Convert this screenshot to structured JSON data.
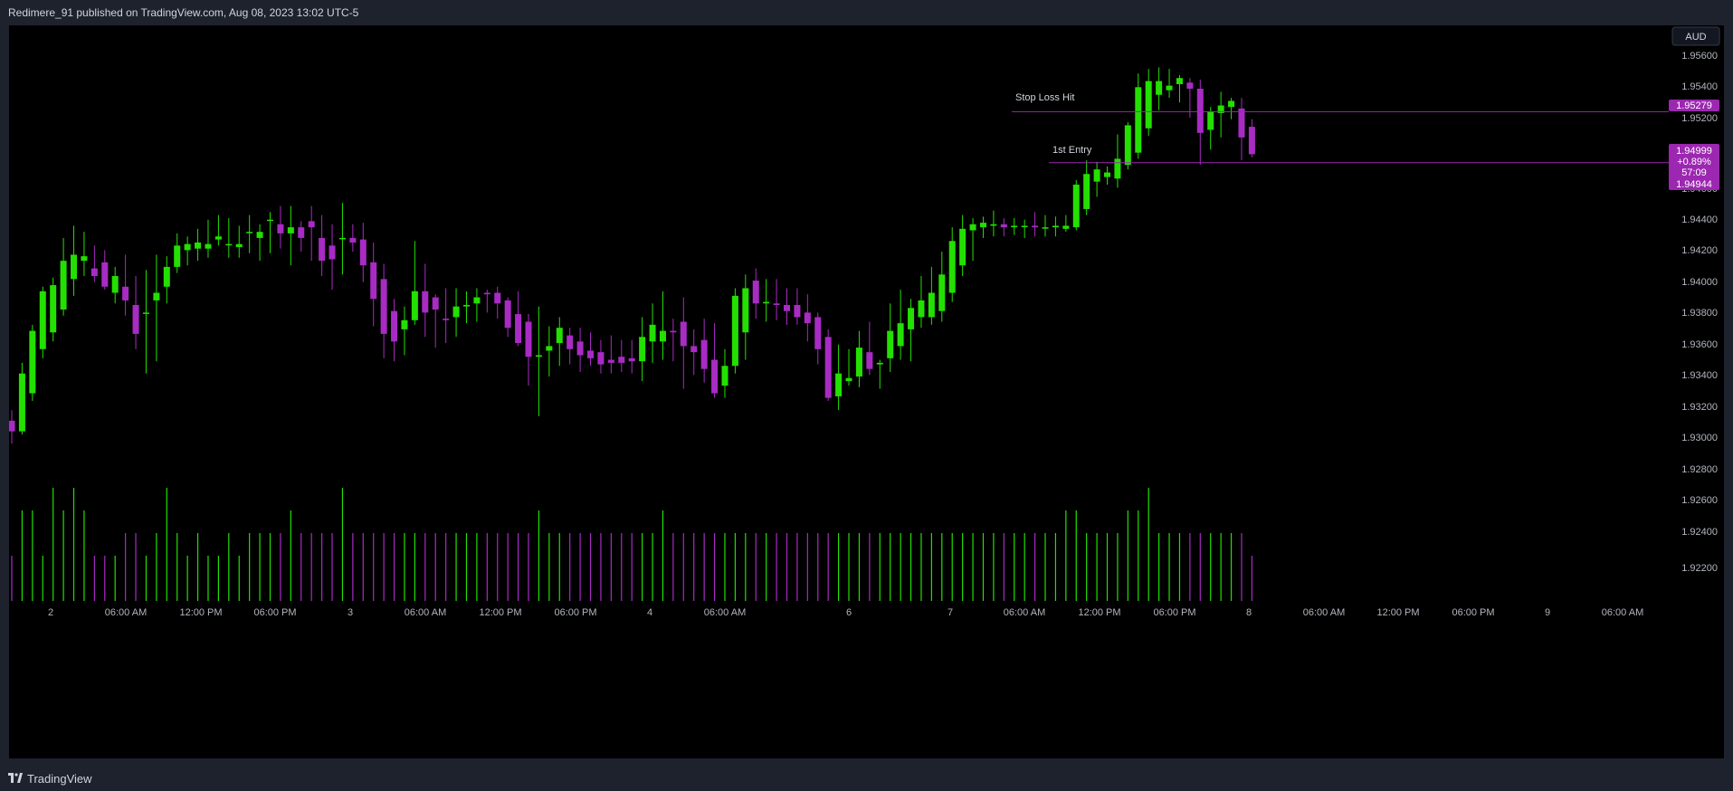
{
  "header": {
    "title": "Redimere_91 published on TradingView.com, Aug 08, 2023 13:02 UTC-5"
  },
  "footer": {
    "brand": "TradingView"
  },
  "currency_button": "AUD",
  "colors": {
    "up": "#23e000",
    "down": "#a82bc4",
    "background": "#000000",
    "label": "#9c27b0"
  },
  "annotations": [
    {
      "name": "stop-loss-line",
      "text": "Stop Loss Hit",
      "price": 1.95279
    },
    {
      "name": "first-entry-line",
      "text": "1st Entry",
      "price": 1.94944
    }
  ],
  "price_labels": {
    "stop_loss": "1.95279",
    "current_price": "1.94999",
    "change_pct": "+0.89%",
    "countdown": "57:09",
    "entry": "1.94944"
  },
  "chart_data": {
    "type": "candlestick",
    "symbol_currency": "AUD",
    "y_ticks": [
      "1.95600",
      "1.95400",
      "1.95200",
      "1.94600",
      "1.94400",
      "1.94200",
      "1.94000",
      "1.93800",
      "1.93600",
      "1.93400",
      "1.93200",
      "1.93000",
      "1.92800",
      "1.92600",
      "1.92400",
      "1.92200"
    ],
    "ylim": [
      1.9212,
      1.9565
    ],
    "x_ticks": [
      "2",
      "06:00 AM",
      "12:00 PM",
      "06:00 PM",
      "3",
      "06:00 AM",
      "12:00 PM",
      "06:00 PM",
      "4",
      "06:00 AM",
      "6",
      "7",
      "06:00 AM",
      "12:00 PM",
      "06:00 PM",
      "8",
      "06:00 AM",
      "12:00 PM",
      "06:00 PM",
      "9",
      "06:00 AM"
    ],
    "candles": [
      [
        1.9325,
        1.9332,
        1.931,
        1.9318,
        2
      ],
      [
        1.9318,
        1.9363,
        1.9316,
        1.9356,
        4
      ],
      [
        1.9343,
        1.9388,
        1.9338,
        1.9384,
        4
      ],
      [
        1.9372,
        1.9413,
        1.9366,
        1.941,
        2
      ],
      [
        1.9383,
        1.9419,
        1.9377,
        1.9414,
        5
      ],
      [
        1.9398,
        1.9445,
        1.9394,
        1.943,
        4
      ],
      [
        1.9418,
        1.9453,
        1.9407,
        1.9434,
        5
      ],
      [
        1.943,
        1.9449,
        1.942,
        1.9433,
        4
      ],
      [
        1.9425,
        1.944,
        1.9416,
        1.942,
        2
      ],
      [
        1.9429,
        1.9437,
        1.9411,
        1.9413,
        2
      ],
      [
        1.9409,
        1.9426,
        1.9402,
        1.942,
        2
      ],
      [
        1.9413,
        1.9434,
        1.9394,
        1.9404,
        3
      ],
      [
        1.9401,
        1.942,
        1.9372,
        1.9382,
        3
      ],
      [
        1.9396,
        1.9424,
        1.9356,
        1.9396,
        2
      ],
      [
        1.9404,
        1.9434,
        1.9364,
        1.9409,
        3
      ],
      [
        1.9413,
        1.9433,
        1.9402,
        1.9426,
        5
      ],
      [
        1.9426,
        1.9448,
        1.9422,
        1.944,
        3
      ],
      [
        1.9437,
        1.9446,
        1.9427,
        1.9441,
        2
      ],
      [
        1.9438,
        1.9451,
        1.943,
        1.9442,
        3
      ],
      [
        1.9438,
        1.9457,
        1.9432,
        1.9441,
        2
      ],
      [
        1.9444,
        1.946,
        1.944,
        1.9446,
        2
      ],
      [
        1.9441,
        1.9458,
        1.9432,
        1.9441,
        3
      ],
      [
        1.9439,
        1.9453,
        1.9432,
        1.9441,
        2
      ],
      [
        1.9449,
        1.946,
        1.9435,
        1.9449,
        3
      ],
      [
        1.9445,
        1.9454,
        1.943,
        1.9449,
        3
      ],
      [
        1.9457,
        1.9462,
        1.9435,
        1.9457,
        3
      ],
      [
        1.9454,
        1.9466,
        1.9438,
        1.9448,
        3
      ],
      [
        1.9448,
        1.9466,
        1.9427,
        1.9452,
        4
      ],
      [
        1.9452,
        1.9456,
        1.9436,
        1.9445,
        3
      ],
      [
        1.9456,
        1.9466,
        1.943,
        1.9452,
        3
      ],
      [
        1.9445,
        1.946,
        1.942,
        1.943,
        3
      ],
      [
        1.944,
        1.9454,
        1.9411,
        1.9431,
        3
      ],
      [
        1.9445,
        1.9468,
        1.9421,
        1.9445,
        5
      ],
      [
        1.9445,
        1.9454,
        1.9436,
        1.9442,
        3
      ],
      [
        1.9444,
        1.9455,
        1.9416,
        1.9427,
        3
      ],
      [
        1.9429,
        1.9442,
        1.9387,
        1.9405,
        3
      ],
      [
        1.9418,
        1.9428,
        1.9366,
        1.9382,
        3
      ],
      [
        1.9397,
        1.9405,
        1.9364,
        1.9377,
        3
      ],
      [
        1.9385,
        1.94,
        1.9368,
        1.9391,
        3
      ],
      [
        1.9391,
        1.9443,
        1.9388,
        1.941,
        3
      ],
      [
        1.941,
        1.9428,
        1.938,
        1.9396,
        3
      ],
      [
        1.9406,
        1.9408,
        1.9373,
        1.9398,
        3
      ],
      [
        1.9392,
        1.9412,
        1.9376,
        1.9391,
        3
      ],
      [
        1.9393,
        1.9412,
        1.938,
        1.94,
        3
      ],
      [
        1.94,
        1.941,
        1.9389,
        1.9401,
        3
      ],
      [
        1.9402,
        1.9412,
        1.939,
        1.9406,
        3
      ],
      [
        1.9409,
        1.9411,
        1.9396,
        1.9408,
        3
      ],
      [
        1.9409,
        1.9413,
        1.9392,
        1.9402,
        3
      ],
      [
        1.9404,
        1.9406,
        1.938,
        1.9386,
        3
      ],
      [
        1.9395,
        1.941,
        1.9374,
        1.9376,
        3
      ],
      [
        1.939,
        1.9395,
        1.9348,
        1.9367,
        3
      ],
      [
        1.9367,
        1.94,
        1.9328,
        1.9368,
        4
      ],
      [
        1.9371,
        1.9387,
        1.9354,
        1.9374,
        3
      ],
      [
        1.9376,
        1.9393,
        1.9361,
        1.9386,
        3
      ],
      [
        1.9381,
        1.9386,
        1.9362,
        1.9372,
        3
      ],
      [
        1.9377,
        1.9386,
        1.9357,
        1.9368,
        3
      ],
      [
        1.9371,
        1.9383,
        1.9361,
        1.9366,
        3
      ],
      [
        1.937,
        1.9378,
        1.9356,
        1.9362,
        3
      ],
      [
        1.9365,
        1.9381,
        1.9356,
        1.9363,
        3
      ],
      [
        1.9367,
        1.9378,
        1.9357,
        1.9363,
        3
      ],
      [
        1.9366,
        1.9378,
        1.9356,
        1.9364,
        3
      ],
      [
        1.9364,
        1.9393,
        1.9351,
        1.938,
        3
      ],
      [
        1.9377,
        1.9402,
        1.9363,
        1.9388,
        3
      ],
      [
        1.9377,
        1.941,
        1.9365,
        1.9384,
        4
      ],
      [
        1.9384,
        1.9392,
        1.9364,
        1.9383,
        3
      ],
      [
        1.939,
        1.9406,
        1.9346,
        1.9374,
        3
      ],
      [
        1.9374,
        1.9385,
        1.9355,
        1.937,
        3
      ],
      [
        1.9378,
        1.9392,
        1.935,
        1.9359,
        3
      ],
      [
        1.9365,
        1.9389,
        1.934,
        1.9343,
        3
      ],
      [
        1.9348,
        1.9372,
        1.934,
        1.9361,
        3
      ],
      [
        1.9361,
        1.9412,
        1.9356,
        1.9407,
        3
      ],
      [
        1.9383,
        1.9421,
        1.9365,
        1.9412,
        3
      ],
      [
        1.9417,
        1.9425,
        1.9392,
        1.9402,
        3
      ],
      [
        1.9402,
        1.9418,
        1.939,
        1.9403,
        3
      ],
      [
        1.9402,
        1.9418,
        1.9391,
        1.9401,
        3
      ],
      [
        1.9401,
        1.9412,
        1.9388,
        1.9397,
        3
      ],
      [
        1.9401,
        1.9412,
        1.9388,
        1.9393,
        3
      ],
      [
        1.9396,
        1.9408,
        1.9377,
        1.9389,
        3
      ],
      [
        1.9393,
        1.9396,
        1.9362,
        1.9372,
        3
      ],
      [
        1.938,
        1.9385,
        1.9338,
        1.934,
        3
      ],
      [
        1.9341,
        1.9375,
        1.9332,
        1.9356,
        3
      ],
      [
        1.9351,
        1.9372,
        1.9348,
        1.9353,
        3
      ],
      [
        1.9354,
        1.9384,
        1.9347,
        1.9373,
        3
      ],
      [
        1.937,
        1.939,
        1.9355,
        1.9359,
        3
      ],
      [
        1.9362,
        1.9365,
        1.9346,
        1.9363,
        3
      ],
      [
        1.9366,
        1.9402,
        1.9357,
        1.9384,
        3
      ],
      [
        1.9374,
        1.9411,
        1.9365,
        1.9389,
        3
      ],
      [
        1.9385,
        1.9405,
        1.9364,
        1.9399,
        3
      ],
      [
        1.9393,
        1.942,
        1.9386,
        1.9404,
        3
      ],
      [
        1.9393,
        1.9426,
        1.9388,
        1.9409,
        3
      ],
      [
        1.9397,
        1.9436,
        1.939,
        1.9421,
        3
      ],
      [
        1.9409,
        1.9452,
        1.9403,
        1.9443,
        3
      ],
      [
        1.9427,
        1.946,
        1.942,
        1.9451,
        3
      ],
      [
        1.945,
        1.9458,
        1.943,
        1.9454,
        3
      ],
      [
        1.9452,
        1.9459,
        1.9445,
        1.9455,
        3
      ],
      [
        1.9453,
        1.9463,
        1.9446,
        1.9454,
        3
      ],
      [
        1.9454,
        1.9458,
        1.9446,
        1.9452,
        3
      ],
      [
        1.9452,
        1.9458,
        1.9447,
        1.9453,
        3
      ],
      [
        1.9453,
        1.9457,
        1.9445,
        1.9453,
        3
      ],
      [
        1.9453,
        1.9462,
        1.9446,
        1.9452,
        3
      ],
      [
        1.9452,
        1.946,
        1.9446,
        1.9452,
        3
      ],
      [
        1.9452,
        1.9459,
        1.9446,
        1.9453,
        3
      ],
      [
        1.9451,
        1.946,
        1.9449,
        1.9453,
        4
      ],
      [
        1.9452,
        1.9483,
        1.945,
        1.948,
        4
      ],
      [
        1.9464,
        1.9496,
        1.946,
        1.9487,
        3
      ],
      [
        1.9482,
        1.9495,
        1.9472,
        1.949,
        3
      ],
      [
        1.9485,
        1.9492,
        1.948,
        1.9488,
        3
      ],
      [
        1.9484,
        1.9513,
        1.9478,
        1.9497,
        3
      ],
      [
        1.9493,
        1.9521,
        1.949,
        1.9519,
        4
      ],
      [
        1.9501,
        1.9553,
        1.9497,
        1.9544,
        4
      ],
      [
        1.9517,
        1.9556,
        1.9512,
        1.9548,
        5
      ],
      [
        1.9539,
        1.9557,
        1.9529,
        1.9548,
        3
      ],
      [
        1.9542,
        1.9556,
        1.9537,
        1.9545,
        3
      ],
      [
        1.9546,
        1.9552,
        1.9534,
        1.955,
        3
      ],
      [
        1.9547,
        1.955,
        1.9524,
        1.9543,
        3
      ],
      [
        1.9543,
        1.9549,
        1.9493,
        1.9514,
        3
      ],
      [
        1.9516,
        1.9531,
        1.9503,
        1.9528,
        3
      ],
      [
        1.9527,
        1.9541,
        1.9511,
        1.9532,
        3
      ],
      [
        1.9531,
        1.9537,
        1.9523,
        1.9535,
        3
      ],
      [
        1.953,
        1.9537,
        1.9496,
        1.9511,
        3
      ],
      [
        1.9518,
        1.9523,
        1.9498,
        1.95,
        2
      ]
    ]
  }
}
